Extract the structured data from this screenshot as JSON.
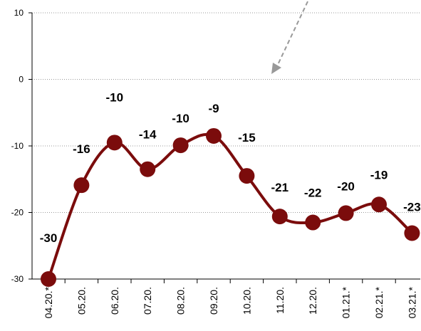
{
  "chart_data": {
    "type": "line",
    "categories": [
      "04.20.*",
      "05.20.",
      "06.20.",
      "07.20.",
      "08.20.",
      "09.20.",
      "10.20.",
      "11.20.",
      "12.20.",
      "01.21.*",
      "02.21.*",
      "03.21.*"
    ],
    "values": [
      -30,
      -15.9,
      -9.5,
      -13.5,
      -9.9,
      -8.5,
      -14.5,
      -20.6,
      -21.5,
      -20.1,
      -18.8,
      -23.1
    ],
    "value_labels": [
      "-30",
      "-16",
      "-10",
      "-14",
      "-10",
      "-9",
      "-15",
      "-21",
      "-22",
      "-20",
      "-19",
      "-23"
    ],
    "color": "#7b0c0c",
    "ylim": [
      -30,
      10
    ],
    "yticks": [
      -30,
      -20,
      -10,
      0,
      10
    ],
    "grid": true
  }
}
